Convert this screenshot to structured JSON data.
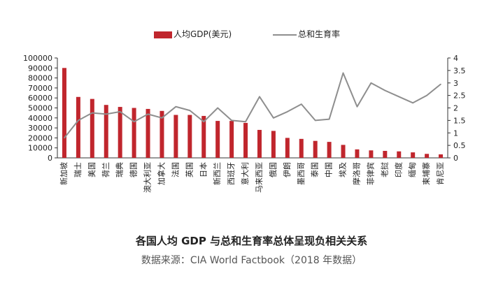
{
  "chart_data": {
    "type": "bar+line",
    "categories": [
      "新加坡",
      "瑞士",
      "美国",
      "荷兰",
      "瑞典",
      "德国",
      "澳大利亚",
      "加拿大",
      "法国",
      "英国",
      "日本",
      "新西兰",
      "西班牙",
      "意大利",
      "马来西亚",
      "俄国",
      "伊朗",
      "墨西哥",
      "泰国",
      "中国",
      "埃及",
      "摩洛哥",
      "菲律宾",
      "老挝",
      "印度",
      "缅甸",
      "柬埔寨",
      "肯尼亚"
    ],
    "series": [
      {
        "name": "人均GDP(美元)",
        "type": "bar",
        "axis": "left",
        "values": [
          90000,
          61000,
          59000,
          53000,
          51000,
          50000,
          49000,
          47000,
          43000,
          43000,
          42000,
          37000,
          37000,
          35000,
          28000,
          27000,
          20000,
          19000,
          17000,
          16000,
          13000,
          8500,
          7500,
          7000,
          6500,
          5500,
          4000,
          3500
        ]
      },
      {
        "name": "总和生育率",
        "type": "line",
        "axis": "right",
        "values": [
          0.8,
          1.5,
          1.8,
          1.75,
          1.85,
          1.45,
          1.75,
          1.6,
          2.05,
          1.9,
          1.45,
          2.0,
          1.5,
          1.45,
          2.45,
          1.6,
          1.85,
          2.15,
          1.5,
          1.55,
          3.4,
          2.05,
          3.0,
          2.7,
          2.45,
          2.2,
          2.5,
          2.95
        ]
      }
    ],
    "ylim_left": [
      0,
      100000
    ],
    "yticks_left": [
      "0",
      "10000",
      "20000",
      "30000",
      "40000",
      "50000",
      "60000",
      "70000",
      "80000",
      "90000",
      "100000"
    ],
    "ylim_right": [
      0,
      4
    ],
    "yticks_right": [
      "0",
      "0.5",
      "1",
      "1.5",
      "2",
      "2.5",
      "3",
      "3.5",
      "4"
    ],
    "colors": {
      "bar": "#c0262d",
      "line": "#8e8e8e",
      "axis": "#333333"
    },
    "title": "各国人均 GDP 与总和生育率总体呈现负相关关系",
    "source": "数据来源：CIA World Factbook（2018 年数据）",
    "grid": false,
    "legend_position": "top-center"
  }
}
